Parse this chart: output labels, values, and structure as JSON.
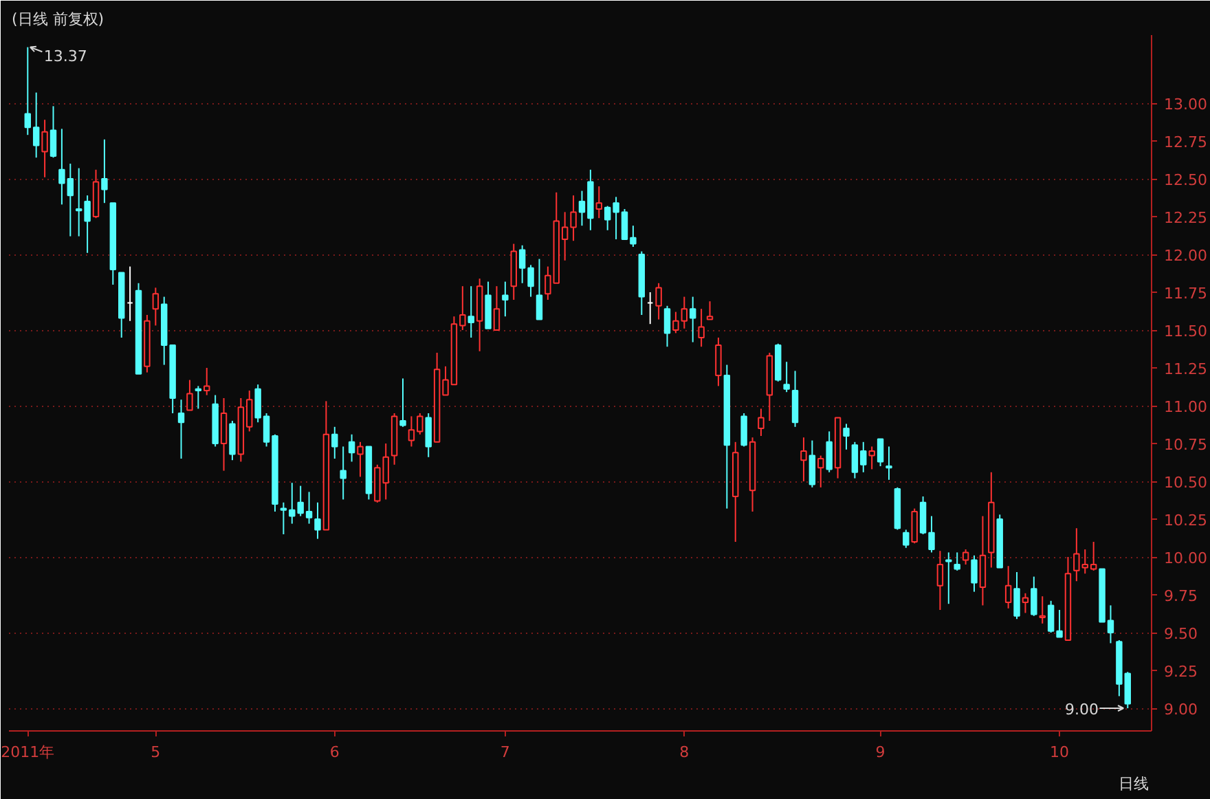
{
  "chart_data": {
    "type": "candlestick",
    "title": "(日线 前复权)",
    "xlabel": "日线",
    "categories": [
      "2011年",
      null,
      null,
      null,
      null,
      null,
      null,
      null,
      null,
      null,
      null,
      null,
      null,
      null,
      null,
      "5",
      null,
      null,
      null,
      null,
      null,
      null,
      null,
      null,
      null,
      null,
      null,
      null,
      null,
      null,
      null,
      null,
      null,
      null,
      null,
      null,
      "6",
      null,
      null,
      null,
      null,
      null,
      null,
      null,
      null,
      null,
      null,
      null,
      null,
      null,
      null,
      null,
      null,
      null,
      null,
      null,
      "7",
      null,
      null,
      null,
      null,
      null,
      null,
      null,
      null,
      null,
      null,
      null,
      null,
      null,
      null,
      null,
      null,
      null,
      null,
      null,
      null,
      "8",
      null,
      null,
      null,
      null,
      null,
      null,
      null,
      null,
      null,
      null,
      null,
      null,
      null,
      null,
      null,
      null,
      null,
      null,
      null,
      null,
      null,
      null,
      "9",
      null,
      null,
      null,
      null,
      null,
      null,
      null,
      null,
      null,
      null,
      null,
      null,
      null,
      null,
      null,
      null,
      null,
      null,
      null,
      null,
      "10",
      null,
      null,
      null,
      null,
      null,
      null,
      null,
      null
    ],
    "ohlc": [
      [
        12.93,
        13.37,
        12.79,
        12.84
      ],
      [
        12.84,
        13.07,
        12.64,
        12.72
      ],
      [
        12.68,
        12.89,
        12.51,
        12.81
      ],
      [
        12.82,
        12.98,
        12.64,
        12.65
      ],
      [
        12.56,
        12.83,
        12.33,
        12.47
      ],
      [
        12.5,
        12.6,
        12.12,
        12.39
      ],
      [
        12.3,
        12.57,
        12.12,
        12.29
      ],
      [
        12.35,
        12.39,
        12.01,
        12.22
      ],
      [
        12.25,
        12.56,
        12.24,
        12.48
      ],
      [
        12.5,
        12.76,
        12.34,
        12.43
      ],
      [
        12.34,
        12.34,
        11.8,
        11.9
      ],
      [
        11.88,
        11.88,
        11.45,
        11.58
      ],
      [
        11.68,
        11.92,
        11.56,
        11.68
      ],
      [
        11.76,
        11.81,
        11.21,
        11.21
      ],
      [
        11.26,
        11.6,
        11.22,
        11.56
      ],
      [
        11.64,
        11.78,
        11.53,
        11.74
      ],
      [
        11.67,
        11.72,
        11.27,
        11.4
      ],
      [
        11.4,
        11.4,
        10.95,
        11.05
      ],
      [
        10.95,
        11.04,
        10.65,
        10.89
      ],
      [
        10.97,
        11.17,
        10.97,
        11.08
      ],
      [
        11.11,
        11.13,
        10.98,
        11.1
      ],
      [
        11.1,
        11.25,
        11.07,
        11.13
      ],
      [
        11.01,
        11.07,
        10.73,
        10.75
      ],
      [
        10.75,
        11.05,
        10.57,
        10.95
      ],
      [
        10.88,
        10.9,
        10.64,
        10.68
      ],
      [
        10.68,
        11.05,
        10.63,
        10.99
      ],
      [
        10.86,
        11.1,
        10.83,
        11.04
      ],
      [
        11.11,
        11.14,
        10.89,
        10.92
      ],
      [
        10.93,
        10.95,
        10.73,
        10.76
      ],
      [
        10.8,
        10.81,
        10.3,
        10.35
      ],
      [
        10.32,
        10.36,
        10.15,
        10.31
      ],
      [
        10.31,
        10.49,
        10.22,
        10.27
      ],
      [
        10.36,
        10.47,
        10.27,
        10.29
      ],
      [
        10.3,
        10.43,
        10.22,
        10.26
      ],
      [
        10.25,
        10.36,
        10.12,
        10.18
      ],
      [
        10.18,
        11.03,
        10.18,
        10.81
      ],
      [
        10.81,
        10.86,
        10.65,
        10.73
      ],
      [
        10.57,
        10.73,
        10.38,
        10.52
      ],
      [
        10.76,
        10.81,
        10.63,
        10.69
      ],
      [
        10.68,
        10.76,
        10.53,
        10.73
      ],
      [
        10.73,
        10.73,
        10.38,
        10.42
      ],
      [
        10.37,
        10.61,
        10.36,
        10.59
      ],
      [
        10.49,
        10.75,
        10.38,
        10.66
      ],
      [
        10.67,
        10.95,
        10.61,
        10.93
      ],
      [
        10.9,
        11.18,
        10.86,
        10.87
      ],
      [
        10.77,
        10.93,
        10.73,
        10.84
      ],
      [
        10.83,
        10.95,
        10.81,
        10.93
      ],
      [
        10.92,
        10.95,
        10.66,
        10.73
      ],
      [
        10.76,
        11.35,
        10.76,
        11.24
      ],
      [
        11.07,
        11.26,
        11.07,
        11.17
      ],
      [
        11.14,
        11.59,
        11.14,
        11.54
      ],
      [
        11.53,
        11.79,
        11.5,
        11.6
      ],
      [
        11.59,
        11.79,
        11.45,
        11.55
      ],
      [
        11.56,
        11.84,
        11.36,
        11.79
      ],
      [
        11.73,
        11.82,
        11.51,
        11.51
      ],
      [
        11.5,
        11.79,
        11.5,
        11.64
      ],
      [
        11.73,
        11.82,
        11.59,
        11.7
      ],
      [
        11.79,
        12.07,
        11.7,
        12.02
      ],
      [
        12.03,
        12.06,
        11.81,
        11.91
      ],
      [
        11.91,
        11.93,
        11.72,
        11.79
      ],
      [
        11.73,
        11.97,
        11.57,
        11.57
      ],
      [
        11.74,
        11.92,
        11.7,
        11.86
      ],
      [
        11.81,
        12.41,
        11.81,
        12.22
      ],
      [
        12.1,
        12.28,
        11.96,
        12.18
      ],
      [
        12.18,
        12.39,
        12.09,
        12.28
      ],
      [
        12.35,
        12.42,
        12.19,
        12.28
      ],
      [
        12.48,
        12.56,
        12.16,
        12.24
      ],
      [
        12.3,
        12.45,
        12.24,
        12.34
      ],
      [
        12.31,
        12.32,
        12.16,
        12.23
      ],
      [
        12.34,
        12.38,
        12.1,
        12.28
      ],
      [
        12.28,
        12.3,
        12.1,
        12.1
      ],
      [
        12.11,
        12.19,
        12.05,
        12.07
      ],
      [
        12.0,
        12.02,
        11.6,
        11.72
      ],
      [
        11.68,
        11.75,
        11.54,
        11.68
      ],
      [
        11.66,
        11.81,
        11.57,
        11.78
      ],
      [
        11.64,
        11.66,
        11.39,
        11.48
      ],
      [
        11.5,
        11.62,
        11.48,
        11.56
      ],
      [
        11.56,
        11.72,
        11.51,
        11.64
      ],
      [
        11.64,
        11.72,
        11.42,
        11.58
      ],
      [
        11.45,
        11.64,
        11.39,
        11.52
      ],
      [
        11.57,
        11.69,
        11.57,
        11.59
      ],
      [
        11.2,
        11.45,
        11.13,
        11.4
      ],
      [
        11.2,
        11.27,
        10.32,
        10.74
      ],
      [
        10.4,
        10.76,
        10.1,
        10.69
      ],
      [
        10.93,
        10.95,
        10.73,
        10.74
      ],
      [
        10.44,
        10.79,
        10.3,
        10.76
      ],
      [
        10.85,
        10.98,
        10.8,
        10.92
      ],
      [
        11.07,
        11.35,
        10.9,
        11.33
      ],
      [
        11.4,
        11.41,
        11.16,
        11.17
      ],
      [
        11.14,
        11.29,
        11.09,
        11.11
      ],
      [
        11.1,
        11.23,
        10.86,
        10.89
      ],
      [
        10.64,
        10.79,
        10.5,
        10.7
      ],
      [
        10.67,
        10.77,
        10.46,
        10.48
      ],
      [
        10.59,
        10.67,
        10.46,
        10.65
      ],
      [
        10.76,
        10.83,
        10.56,
        10.58
      ],
      [
        10.59,
        10.92,
        10.52,
        10.92
      ],
      [
        10.85,
        10.88,
        10.71,
        10.8
      ],
      [
        10.74,
        10.76,
        10.52,
        10.56
      ],
      [
        10.7,
        10.76,
        10.56,
        10.61
      ],
      [
        10.67,
        10.73,
        10.58,
        10.7
      ],
      [
        10.78,
        10.78,
        10.6,
        10.63
      ],
      [
        10.6,
        10.73,
        10.51,
        10.59
      ],
      [
        10.45,
        10.46,
        10.18,
        10.19
      ],
      [
        10.16,
        10.18,
        10.06,
        10.08
      ],
      [
        10.1,
        10.32,
        10.09,
        10.3
      ],
      [
        10.36,
        10.4,
        10.15,
        10.16
      ],
      [
        10.16,
        10.27,
        10.03,
        10.05
      ],
      [
        9.81,
        10.04,
        9.65,
        9.95
      ],
      [
        9.98,
        10.03,
        9.69,
        9.97
      ],
      [
        9.95,
        10.03,
        9.91,
        9.92
      ],
      [
        9.98,
        10.05,
        9.95,
        10.03
      ],
      [
        9.98,
        10.01,
        9.77,
        9.83
      ],
      [
        9.8,
        10.27,
        9.68,
        10.01
      ],
      [
        10.03,
        10.56,
        9.93,
        10.36
      ],
      [
        10.25,
        10.28,
        9.93,
        9.93
      ],
      [
        9.7,
        9.94,
        9.66,
        9.81
      ],
      [
        9.79,
        9.9,
        9.59,
        9.61
      ],
      [
        9.7,
        9.76,
        9.63,
        9.73
      ],
      [
        9.79,
        9.87,
        9.61,
        9.62
      ],
      [
        9.6,
        9.74,
        9.56,
        9.61
      ],
      [
        9.68,
        9.71,
        9.5,
        9.51
      ],
      [
        9.51,
        9.65,
        9.47,
        9.47
      ],
      [
        9.45,
        10.0,
        9.45,
        9.89
      ],
      [
        9.91,
        10.19,
        9.84,
        10.02
      ],
      [
        9.93,
        10.05,
        9.89,
        9.95
      ],
      [
        9.92,
        10.1,
        9.91,
        9.95
      ],
      [
        9.92,
        9.92,
        9.57,
        9.57
      ],
      [
        9.58,
        9.68,
        9.43,
        9.5
      ],
      [
        9.44,
        9.45,
        9.08,
        9.16
      ],
      [
        9.23,
        9.24,
        9.0,
        9.03
      ]
    ],
    "colors": [
      "#54fcfc",
      "#54fcfc",
      "#ff3232",
      "#54fcfc",
      "#54fcfc",
      "#54fcfc",
      "#54fcfc",
      "#54fcfc",
      "#ff3232",
      "#54fcfc",
      "#54fcfc",
      "#54fcfc",
      "#ffffff",
      "#54fcfc",
      "#ff3232",
      "#ff3232",
      "#54fcfc",
      "#54fcfc",
      "#54fcfc",
      "#ff3232",
      "#54fcfc",
      "#ff3232",
      "#54fcfc",
      "#ff3232",
      "#54fcfc",
      "#ff3232",
      "#ff3232",
      "#54fcfc",
      "#54fcfc",
      "#54fcfc",
      "#54fcfc",
      "#54fcfc",
      "#54fcfc",
      "#54fcfc",
      "#54fcfc",
      "#ff3232",
      "#54fcfc",
      "#54fcfc",
      "#54fcfc",
      "#ff3232",
      "#54fcfc",
      "#ff3232",
      "#ff3232",
      "#ff3232",
      "#54fcfc",
      "#ff3232",
      "#ff3232",
      "#54fcfc",
      "#ff3232",
      "#ff3232",
      "#ff3232",
      "#ff3232",
      "#54fcfc",
      "#ff3232",
      "#54fcfc",
      "#ff3232",
      "#54fcfc",
      "#ff3232",
      "#54fcfc",
      "#54fcfc",
      "#54fcfc",
      "#ff3232",
      "#ff3232",
      "#ff3232",
      "#ff3232",
      "#54fcfc",
      "#54fcfc",
      "#ff3232",
      "#54fcfc",
      "#54fcfc",
      "#54fcfc",
      "#54fcfc",
      "#54fcfc",
      "#ffffff",
      "#ff3232",
      "#54fcfc",
      "#ff3232",
      "#ff3232",
      "#54fcfc",
      "#ff3232",
      "#ff3232",
      "#ff3232",
      "#54fcfc",
      "#ff3232",
      "#54fcfc",
      "#ff3232",
      "#ff3232",
      "#ff3232",
      "#54fcfc",
      "#54fcfc",
      "#54fcfc",
      "#ff3232",
      "#54fcfc",
      "#ff3232",
      "#54fcfc",
      "#ff3232",
      "#54fcfc",
      "#54fcfc",
      "#54fcfc",
      "#ff3232",
      "#54fcfc",
      "#54fcfc",
      "#54fcfc",
      "#54fcfc",
      "#ff3232",
      "#54fcfc",
      "#54fcfc",
      "#ff3232",
      "#54fcfc",
      "#54fcfc",
      "#ff3232",
      "#54fcfc",
      "#ff3232",
      "#ff3232",
      "#54fcfc",
      "#ff3232",
      "#54fcfc",
      "#ff3232",
      "#54fcfc",
      "#ff3232",
      "#54fcfc",
      "#54fcfc",
      "#ff3232",
      "#ff3232",
      "#ff3232",
      "#ff3232",
      "#54fcfc",
      "#54fcfc",
      "#54fcfc",
      "#54fcfc"
    ],
    "ylim": [
      8.85,
      13.45
    ],
    "yticks": [
      {
        "value": 9,
        "label": "9.00"
      },
      9.25,
      {
        "value": 9.5,
        "label": "9.50"
      },
      9.75,
      {
        "value": 10,
        "label": "10.00"
      },
      10.25,
      {
        "value": 10.5,
        "label": "10.50"
      },
      10.75,
      {
        "value": 11,
        "label": "11.00"
      },
      11.25,
      {
        "value": 11.5,
        "label": "11.50"
      },
      11.75,
      {
        "value": 12,
        "label": "12.00"
      },
      12.25,
      {
        "value": 12.5,
        "label": "12.50"
      },
      12.75,
      {
        "value": 13,
        "label": "13.00"
      }
    ],
    "grid": "y",
    "annotations": [
      "13.37",
      "9.00"
    ]
  }
}
